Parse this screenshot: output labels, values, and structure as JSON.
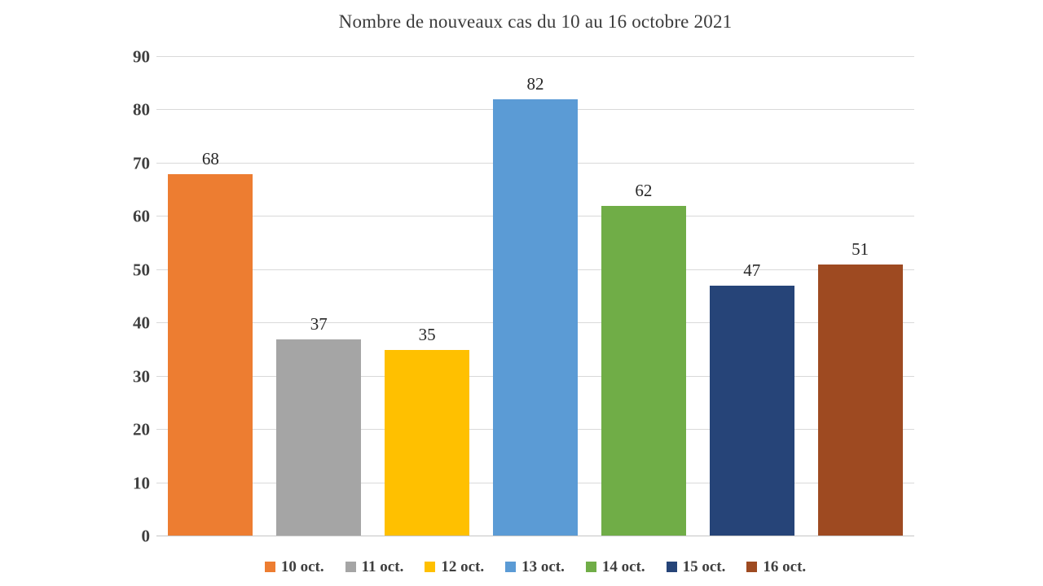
{
  "chart_data": {
    "type": "bar",
    "title": "Nombre de nouveaux cas du 10 au 16 octobre 2021",
    "categories": [
      "10 oct.",
      "11 oct.",
      "12 oct.",
      "13 oct.",
      "14 oct.",
      "15 oct.",
      "16 oct."
    ],
    "values": [
      68,
      37,
      35,
      82,
      62,
      47,
      51
    ],
    "colors": [
      "#ED7D31",
      "#A5A5A5",
      "#FFC000",
      "#5B9BD5",
      "#70AD47",
      "#264478",
      "#9E4A21"
    ],
    "xlabel": "",
    "ylabel": "",
    "ylim": [
      0,
      90
    ],
    "yticks": [
      0,
      10,
      20,
      30,
      40,
      50,
      60,
      70,
      80,
      90
    ],
    "grid": true,
    "legend_position": "bottom"
  },
  "styles": {
    "background": "#FFFFFF",
    "grid_color": "#D9D9D9",
    "axis_line_color": "#C4C4C4",
    "title_color": "#3B3B3B",
    "tick_label_color": "#404040",
    "data_label_color": "#262626",
    "legend_text_color": "#3F3F3F"
  }
}
